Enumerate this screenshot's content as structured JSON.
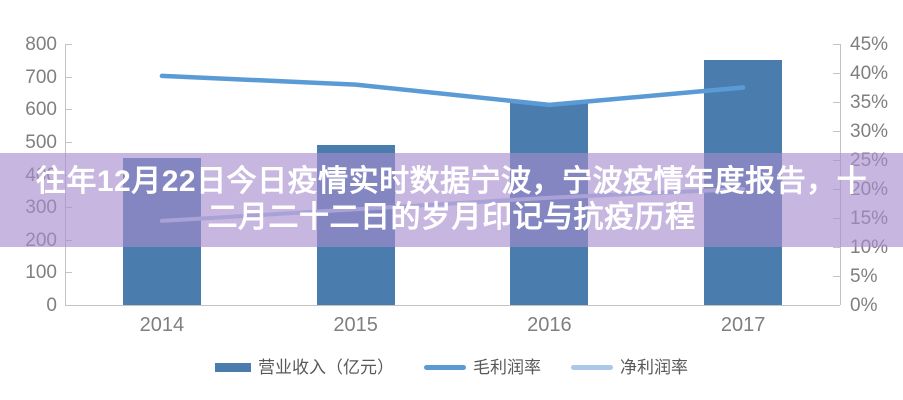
{
  "banner": {
    "full_text": "往年12月22日今日疫情实时数据宁波，宁波疫情年度报告，十二月二十二日的岁月印记与抗疫历程",
    "line1": "往年12月22日今日疫情实时数据宁波，宁波疫情年度报告，十",
    "line2": "二月二十二日的岁月印记与抗疫历程",
    "overlay_color": "rgba(167,139,204,0.63)",
    "text_color": "#ffffff"
  },
  "chart_data": {
    "type": "combo-bar-line",
    "title": "",
    "categories": [
      "2014",
      "2015",
      "2016",
      "2017"
    ],
    "series": [
      {
        "name": "营业收入（亿元）",
        "kind": "bar",
        "axis": "left",
        "color": "#4a7dad",
        "values": [
          450,
          490,
          620,
          750
        ]
      },
      {
        "name": "毛利润率",
        "kind": "line",
        "axis": "right",
        "color": "#5b9bd5",
        "values_percent": [
          39.5,
          38,
          34.5,
          37.5
        ]
      },
      {
        "name": "净利润率",
        "kind": "line",
        "axis": "right",
        "color": "#abc8e8",
        "values_percent": [
          14.5,
          16.5,
          18.5,
          20
        ]
      }
    ],
    "left_axis": {
      "min": 0,
      "max": 800,
      "step": 100,
      "tick_labels": [
        "0",
        "100",
        "200",
        "300",
        "400",
        "500",
        "600",
        "700",
        "800"
      ]
    },
    "right_axis": {
      "min": 0,
      "max": 45,
      "step": 5,
      "tick_labels": [
        "0%",
        "5%",
        "10%",
        "15%",
        "20%",
        "25%",
        "30%",
        "35%",
        "40%",
        "45%"
      ]
    },
    "grid": false,
    "legend_position": "bottom"
  },
  "legend": {
    "items": [
      {
        "label": "营业收入（亿元）",
        "swatch": "bar",
        "color": "#4a7dad"
      },
      {
        "label": "毛利润率",
        "swatch": "line",
        "color": "#5b9bd5"
      },
      {
        "label": "净利润率",
        "swatch": "line",
        "color": "#abc8e8"
      }
    ]
  },
  "colors": {
    "axis_line": "#c3c3c3",
    "axis_text": "#7f7f7f",
    "legend_text": "#595959",
    "background": "#ffffff"
  }
}
